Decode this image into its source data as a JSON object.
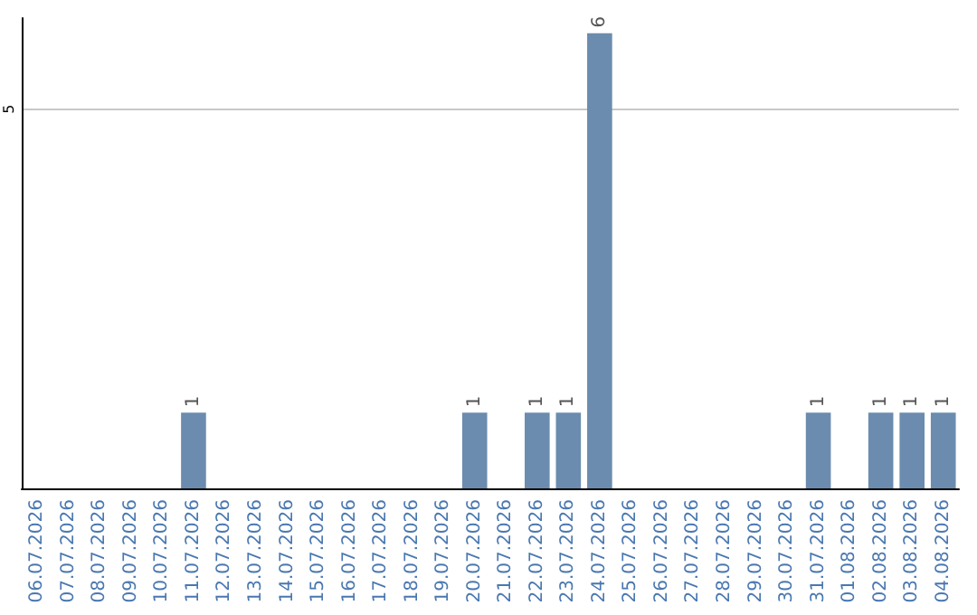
{
  "chart_data": {
    "type": "bar",
    "categories": [
      "06.07.2026",
      "07.07.2026",
      "08.07.2026",
      "09.07.2026",
      "10.07.2026",
      "11.07.2026",
      "12.07.2026",
      "13.07.2026",
      "14.07.2026",
      "15.07.2026",
      "16.07.2026",
      "17.07.2026",
      "18.07.2026",
      "19.07.2026",
      "20.07.2026",
      "21.07.2026",
      "22.07.2026",
      "23.07.2026",
      "24.07.2026",
      "25.07.2026",
      "26.07.2026",
      "27.07.2026",
      "28.07.2026",
      "29.07.2026",
      "30.07.2026",
      "31.07.2026",
      "01.08.2026",
      "02.08.2026",
      "03.08.2026",
      "04.08.2026"
    ],
    "values": [
      0,
      0,
      0,
      0,
      0,
      1,
      0,
      0,
      0,
      0,
      0,
      0,
      0,
      0,
      1,
      0,
      1,
      1,
      6,
      0,
      0,
      0,
      0,
      0,
      0,
      1,
      0,
      1,
      1,
      1
    ],
    "value_labels": [
      null,
      null,
      null,
      null,
      null,
      "1",
      null,
      null,
      null,
      null,
      null,
      null,
      null,
      null,
      "1",
      null,
      "1",
      "1",
      "6",
      null,
      null,
      null,
      null,
      null,
      null,
      "1",
      null,
      "1",
      "1",
      "1"
    ],
    "color": "#6b8cae",
    "ylim": [
      0,
      6.2
    ],
    "yticks": [
      5
    ],
    "grid": "y"
  }
}
